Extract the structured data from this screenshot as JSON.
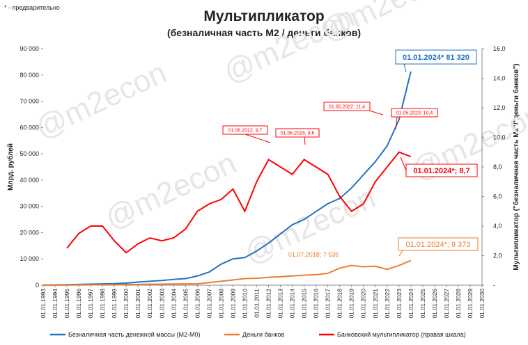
{
  "chart_data": {
    "type": "line",
    "title": "Мультипликатор",
    "subtitle": "(безналичная часть М2 / деньги банков)",
    "note": "* - предварительно",
    "watermark": "@m2econ",
    "y_label": "Млрд. рублей",
    "y2_label": "Мультипликатор (\"безналичная часть М2\"/\"деньги банков\")",
    "x": [
      "01.01.1993",
      "01.01.1994",
      "01.01.1995",
      "01.01.1996",
      "01.01.1997",
      "01.01.1998",
      "01.01.1999",
      "01.01.2000",
      "01.01.2001",
      "01.01.2002",
      "01.01.2003",
      "01.01.2004",
      "01.01.2005",
      "01.01.2006",
      "01.01.2007",
      "01.01.2008",
      "01.01.2009",
      "01.01.2010",
      "01.01.2011",
      "01.01.2012",
      "01.01.2013",
      "01.01.2014",
      "01.01.2015",
      "01.01.2016",
      "01.01.2017",
      "01.01.2018",
      "01.01.2019",
      "01.01.2020",
      "01.01.2021",
      "01.01.2022",
      "01.01.2023",
      "01.01.2024",
      "01.01.2025",
      "01.01.2026",
      "01.01.2027",
      "01.01.2028",
      "01.01.2029",
      "01.01.2030"
    ],
    "series": [
      {
        "name": "Безналичная часть денежной массы (М2-М0)",
        "color": "#1f73c0",
        "values": [
          20,
          100,
          200,
          300,
          400,
          500,
          600,
          800,
          1200,
          1500,
          1800,
          2200,
          2500,
          3500,
          5000,
          8000,
          10000,
          10500,
          13000,
          16000,
          19500,
          23000,
          25000,
          28000,
          31000,
          33000,
          37000,
          42000,
          47000,
          53000,
          63000,
          81320,
          null,
          null,
          null,
          null,
          null,
          null
        ]
      },
      {
        "name": "Деньги банков",
        "color": "#ed7d31",
        "values": [
          10,
          40,
          80,
          100,
          120,
          150,
          200,
          250,
          300,
          350,
          400,
          450,
          500,
          500,
          1000,
          1500,
          2000,
          2500,
          2600,
          3000,
          3200,
          3500,
          3800,
          4000,
          4500,
          6500,
          7500,
          7000,
          7200,
          6000,
          7500,
          9373,
          null,
          null,
          null,
          null,
          null,
          null
        ]
      },
      {
        "name": "Банковский мультипликатор (правая шкала)",
        "color": "#ff0000",
        "axis": "y2",
        "values": [
          null,
          null,
          2.5,
          3.5,
          4.0,
          4.0,
          3.0,
          2.2,
          2.8,
          3.2,
          3.0,
          3.2,
          3.8,
          5.0,
          5.5,
          5.8,
          6.5,
          5.0,
          7.0,
          8.5,
          8.0,
          7.5,
          8.5,
          8.0,
          7.5,
          6.0,
          5.0,
          5.5,
          7.0,
          8.0,
          9.0,
          8.7,
          null,
          null,
          null,
          null,
          null,
          null
        ]
      }
    ],
    "ylim": [
      0,
      90000
    ],
    "yticks": [
      0,
      {
        "value": 10000,
        "label": "10 000"
      },
      {
        "value": 20000,
        "label": "20 000"
      },
      {
        "value": 30000,
        "label": "30 000"
      },
      {
        "value": 40000,
        "label": "40 000"
      },
      {
        "value": 50000,
        "label": "50 000"
      },
      {
        "value": 60000,
        "label": "60 000"
      },
      {
        "value": 70000,
        "label": "70 000"
      },
      {
        "value": 80000,
        "label": "80 000"
      },
      {
        "value": 90000,
        "label": "90 000"
      }
    ],
    "y2lim": [
      0,
      16
    ],
    "y2ticks": [
      {
        "value": 0,
        "label": "-"
      },
      {
        "value": 2,
        "label": "2,0"
      },
      {
        "value": 4,
        "label": "4,0"
      },
      {
        "value": 6,
        "label": "6,0"
      },
      {
        "value": 8,
        "label": "8,0"
      },
      {
        "value": 10,
        "label": "10,0"
      },
      {
        "value": 12,
        "label": "12,0"
      },
      {
        "value": 14,
        "label": "14,0"
      },
      {
        "value": 16,
        "label": "16,0"
      }
    ],
    "annotations": [
      "01.01.2024* 81 320",
      "01.07.2018; 7 536",
      "01.01.2024*; 9 373",
      "01.06.2012; 9,7",
      "01.06.2015; 9,6",
      "01.05.2022; 11,4",
      "01.05.2023; 10,4",
      "01.01.2024*;  8,7"
    ]
  }
}
